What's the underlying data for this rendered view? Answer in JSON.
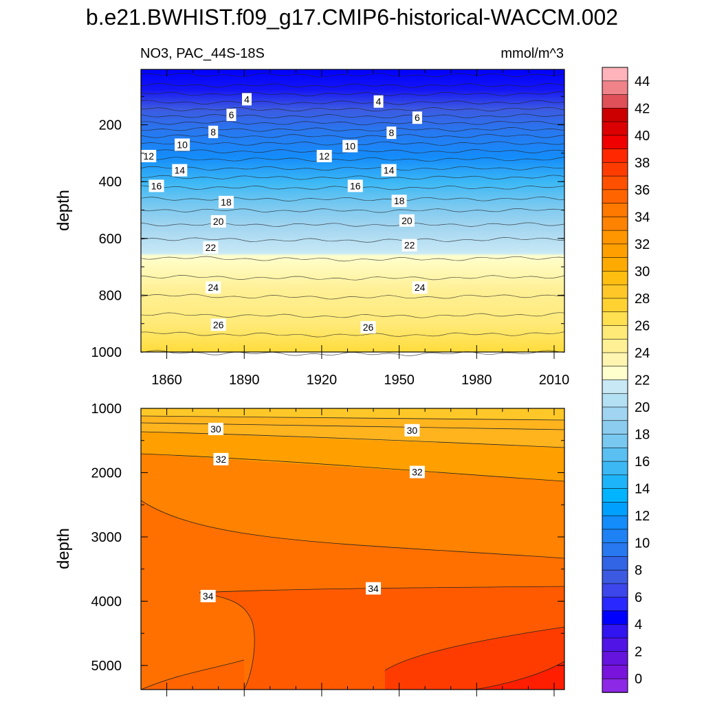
{
  "chart_data": [
    {
      "type": "heatmap",
      "subtype": "filled-contour",
      "panel": "upper",
      "title": "b.e21.BWHIST.f09_g17.CMIP6-historical-WACCM.002",
      "subtitle_left": "NO3, PAC_44S-18S",
      "subtitle_right": "mmol/m^3",
      "xlabel": "",
      "ylabel": "depth",
      "xlim": [
        1850,
        2014
      ],
      "ylim": [
        1000,
        5
      ],
      "x_ticks": [
        "1860",
        "1890",
        "1920",
        "1950",
        "1980",
        "2010"
      ],
      "y_ticks": [
        "200",
        "400",
        "600",
        "800",
        "1000"
      ],
      "contour_levels": [
        2,
        4,
        6,
        8,
        10,
        12,
        14,
        16,
        18,
        20,
        22,
        24,
        26,
        28
      ],
      "depth_profile": [
        {
          "depth": 5,
          "no3": 3.0
        },
        {
          "depth": 60,
          "no3": 4.5
        },
        {
          "depth": 120,
          "no3": 6.5
        },
        {
          "depth": 180,
          "no3": 9.0
        },
        {
          "depth": 250,
          "no3": 12.0
        },
        {
          "depth": 320,
          "no3": 14.5
        },
        {
          "depth": 400,
          "no3": 17.0
        },
        {
          "depth": 500,
          "no3": 19.5
        },
        {
          "depth": 600,
          "no3": 21.5
        },
        {
          "depth": 700,
          "no3": 23.0
        },
        {
          "depth": 800,
          "no3": 24.5
        },
        {
          "depth": 900,
          "no3": 26.0
        },
        {
          "depth": 1000,
          "no3": 27.5
        }
      ],
      "contour_labels": [
        {
          "text": "4",
          "year": 1891,
          "depth": 110
        },
        {
          "text": "4",
          "year": 1942,
          "depth": 118
        },
        {
          "text": "6",
          "year": 1885,
          "depth": 165
        },
        {
          "text": "6",
          "year": 1957,
          "depth": 175
        },
        {
          "text": "8",
          "year": 1878,
          "depth": 225
        },
        {
          "text": "8",
          "year": 1947,
          "depth": 228
        },
        {
          "text": "10",
          "year": 1866,
          "depth": 270
        },
        {
          "text": "10",
          "year": 1931,
          "depth": 275
        },
        {
          "text": "12",
          "year": 1853,
          "depth": 310
        },
        {
          "text": "12",
          "year": 1921,
          "depth": 310
        },
        {
          "text": "14",
          "year": 1865,
          "depth": 360
        },
        {
          "text": "14",
          "year": 1946,
          "depth": 360
        },
        {
          "text": "16",
          "year": 1856,
          "depth": 415
        },
        {
          "text": "16",
          "year": 1933,
          "depth": 415
        },
        {
          "text": "18",
          "year": 1883,
          "depth": 472
        },
        {
          "text": "18",
          "year": 1950,
          "depth": 468
        },
        {
          "text": "20",
          "year": 1880,
          "depth": 540
        },
        {
          "text": "20",
          "year": 1953,
          "depth": 537
        },
        {
          "text": "22",
          "year": 1877,
          "depth": 632
        },
        {
          "text": "22",
          "year": 1954,
          "depth": 624
        },
        {
          "text": "24",
          "year": 1878,
          "depth": 773
        },
        {
          "text": "24",
          "year": 1958,
          "depth": 773
        },
        {
          "text": "26",
          "year": 1880,
          "depth": 904
        },
        {
          "text": "26",
          "year": 1938,
          "depth": 913
        }
      ]
    },
    {
      "type": "heatmap",
      "subtype": "filled-contour",
      "panel": "lower",
      "xlabel": "",
      "ylabel": "depth",
      "xlim": [
        1850,
        2014
      ],
      "ylim": [
        5375,
        1000
      ],
      "x_ticks": [],
      "y_ticks": [
        "1000",
        "2000",
        "3000",
        "4000",
        "5000"
      ],
      "contour_levels": [
        28,
        30,
        32,
        34,
        36,
        38
      ],
      "contour_labels": [
        {
          "text": "30",
          "year": 1879,
          "depth": 1320
        },
        {
          "text": "30",
          "year": 1955,
          "depth": 1340
        },
        {
          "text": "32",
          "year": 1881,
          "depth": 1790
        },
        {
          "text": "32",
          "year": 1957,
          "depth": 1990
        },
        {
          "text": "34",
          "year": 1876,
          "depth": 3920
        },
        {
          "text": "34",
          "year": 1940,
          "depth": 3800
        }
      ]
    }
  ],
  "colorbar": {
    "labels": [
      "44",
      "42",
      "40",
      "38",
      "36",
      "34",
      "32",
      "30",
      "28",
      "26",
      "24",
      "22",
      "20",
      "18",
      "16",
      "14",
      "12",
      "10",
      "8",
      "6",
      "4",
      "2",
      "0"
    ],
    "colors": [
      "#ffb3ba",
      "#f0828a",
      "#e05058",
      "#cc0000",
      "#dd0000",
      "#f00000",
      "#ff2800",
      "#ff3c00",
      "#ff5000",
      "#ff6400",
      "#ff7800",
      "#ff8200",
      "#ff9600",
      "#ffa000",
      "#ffaa00",
      "#ffbe10",
      "#ffc828",
      "#ffd232",
      "#ffe050",
      "#ffea78",
      "#fff096",
      "#fff5b0",
      "#ffffcd",
      "#c8e8f5",
      "#b4e0f4",
      "#a0d4f0",
      "#8cccee",
      "#78c8f0",
      "#5ac0f2",
      "#3cb8f5",
      "#1eb4fa",
      "#00b4ff",
      "#00a0ff",
      "#148cfa",
      "#1e82f5",
      "#2878f0",
      "#3264e6",
      "#3c5ae1",
      "#3c46eb",
      "#2828ff",
      "#0000ff",
      "#3214f0",
      "#5014e6",
      "#6414dc",
      "#7814dc",
      "#8c28e6"
    ]
  }
}
